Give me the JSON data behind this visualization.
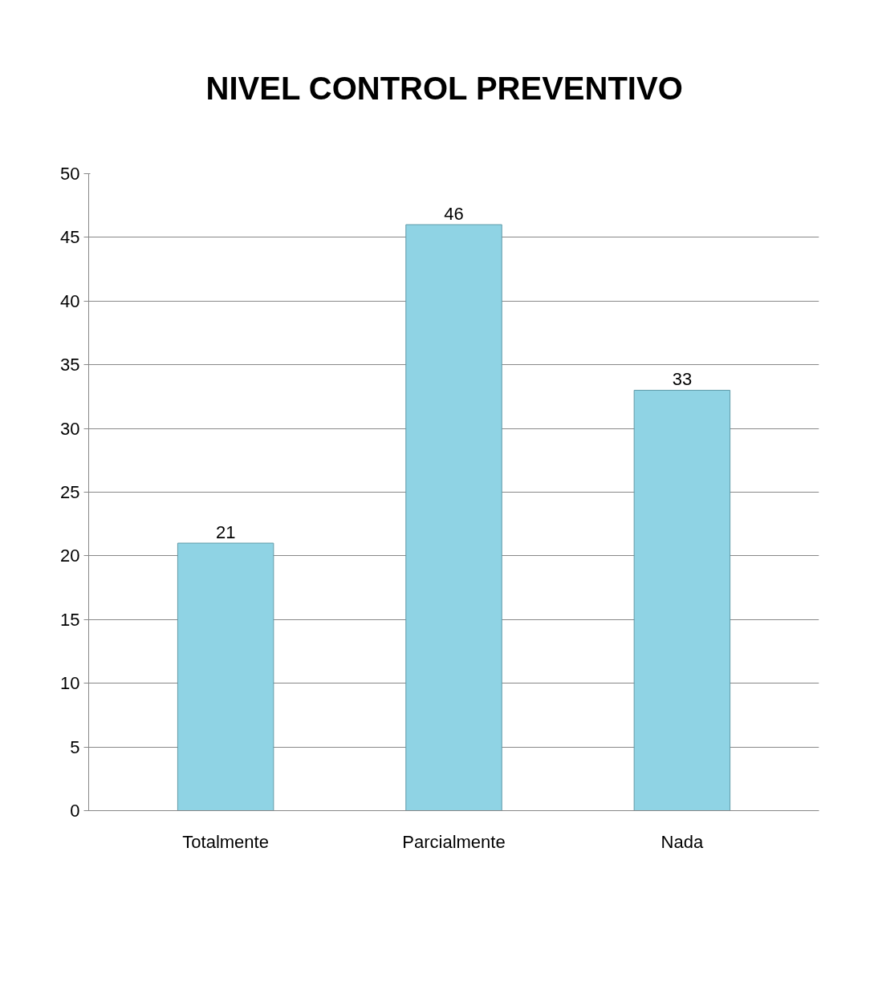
{
  "chart_data": {
    "type": "bar",
    "title": "NIVEL  CONTROL  PREVENTIVO",
    "categories": [
      "Totalmente",
      "Parcialmente",
      "Nada"
    ],
    "values": [
      21,
      46,
      33
    ],
    "color": "#8fd3e4",
    "ylim": [
      0,
      50
    ],
    "yticks": [
      0,
      5,
      10,
      15,
      20,
      25,
      30,
      35,
      40,
      45,
      50
    ],
    "grid": "y",
    "data_labels": true
  }
}
